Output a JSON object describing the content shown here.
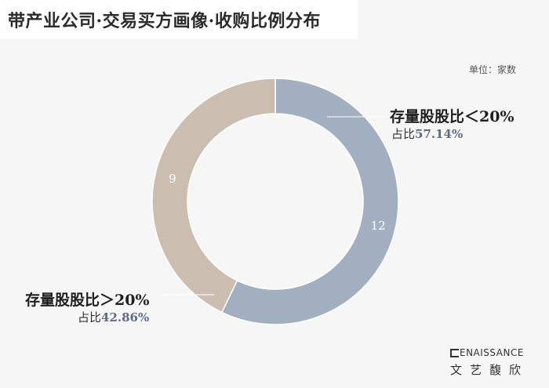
{
  "title": "带产业公司·交易买方画像·收购比例分布",
  "unit": "单位：家数",
  "brand": {
    "en": "ENAISSANCE",
    "cn": "文艺馥欣"
  },
  "chart_data": {
    "type": "pie",
    "donut": true,
    "title": "带产业公司·交易买方画像·收购比例分布",
    "unit": "单位：家数",
    "slices": [
      {
        "label": "存量股股比＜20%",
        "value": 12,
        "value_label": "12",
        "share_prefix": "占比",
        "share": "57.14%",
        "color": "#a2afc0"
      },
      {
        "label": "存量股股比＞20%",
        "value": 9,
        "value_label": "9",
        "share_prefix": "占比",
        "share": "42.86%",
        "color": "#cbbdb0"
      }
    ]
  }
}
